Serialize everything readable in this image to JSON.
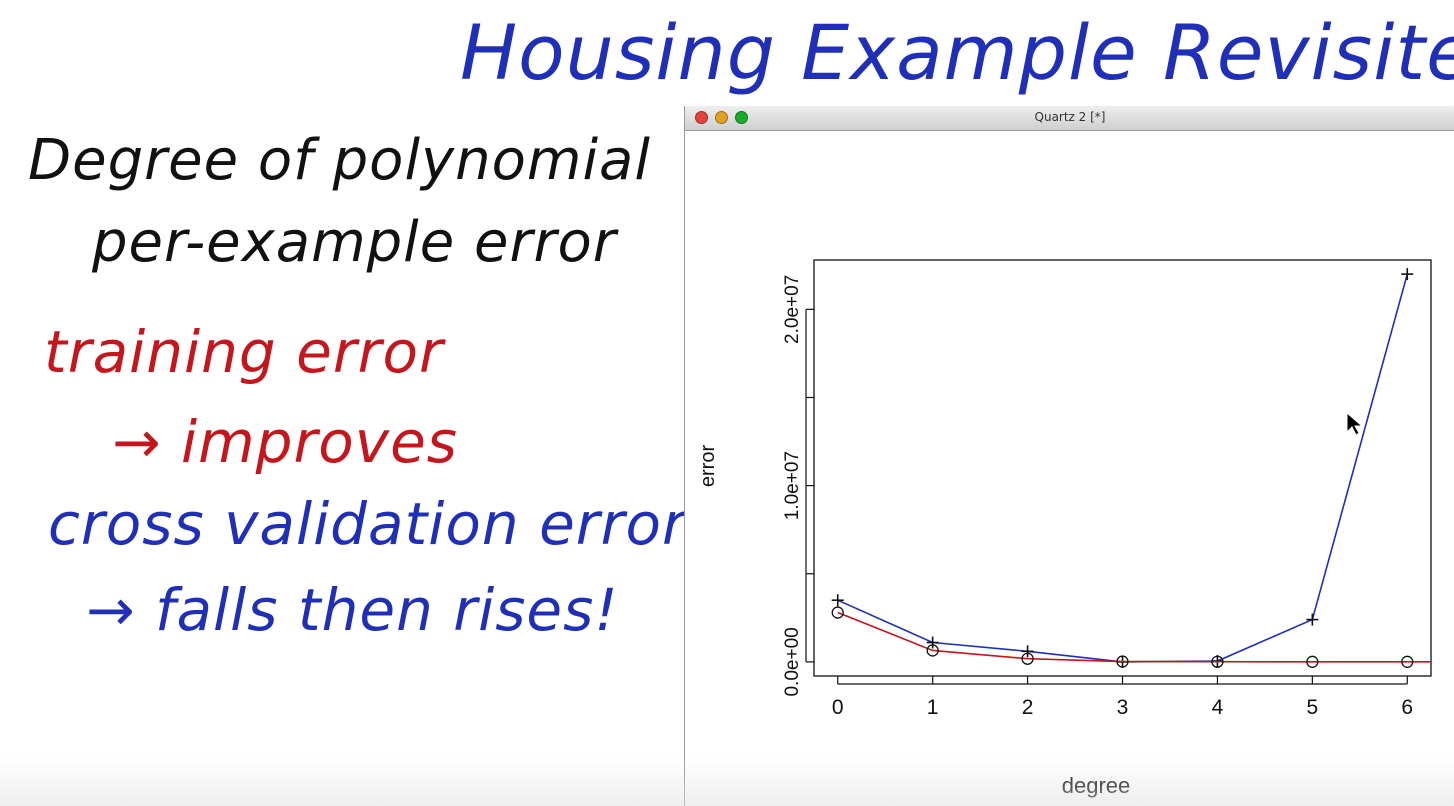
{
  "notes": {
    "title": "Housing Example Revisited",
    "line1": "Degree of polynomial",
    "line2": "per-example error",
    "line3": "training error",
    "line4": "→ improves",
    "line5": "cross validation error",
    "line6": "→ falls then rises!"
  },
  "window": {
    "title": "Quartz 2 [*]"
  },
  "colors": {
    "training": "#c4161c",
    "cross_validation": "#1f2fb8",
    "axis": "#111111"
  },
  "icons": {
    "close": "traffic-light-close",
    "minimize": "traffic-light-minimize",
    "maximize": "traffic-light-maximize",
    "cursor": "mouse-pointer"
  },
  "chart_data": {
    "type": "line",
    "title": "",
    "xlabel": "degree",
    "ylabel": "error",
    "x": [
      0,
      1,
      2,
      3,
      4,
      5,
      6
    ],
    "xlim": [
      -0.25,
      6.25
    ],
    "ylim": [
      -800000,
      22800000
    ],
    "x_ticks": [
      0,
      1,
      2,
      3,
      4,
      5,
      6
    ],
    "y_ticks": [
      0,
      5000000,
      10000000,
      15000000,
      20000000
    ],
    "y_tick_labels": [
      "0.0e+00",
      "",
      "1.0e+07",
      "",
      "2.0e+07"
    ],
    "grid": false,
    "series": [
      {
        "name": "",
        "marker": "plus",
        "color": "#1f2fb8",
        "values": [
          3500000,
          1100000,
          600000,
          0,
          50000,
          2400000,
          22000000
        ]
      },
      {
        "name": "",
        "marker": "circle",
        "color": "#c4161c",
        "values": [
          2800000,
          650000,
          180000,
          20000,
          10000,
          5000,
          5000
        ]
      }
    ]
  }
}
